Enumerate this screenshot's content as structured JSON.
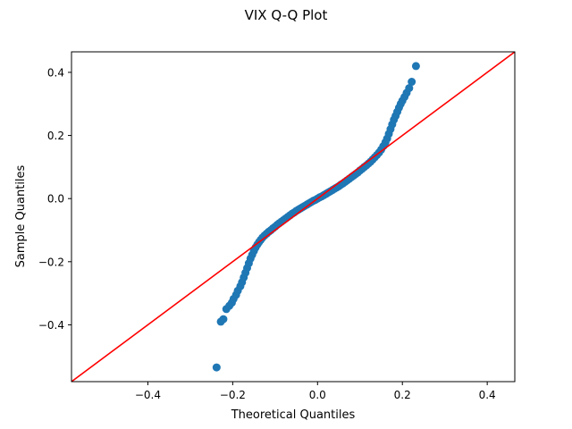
{
  "chart_data": {
    "type": "scatter",
    "title": "VIX Q-Q Plot",
    "xlabel": "Theoretical Quantiles",
    "ylabel": "Sample Quantiles",
    "xlim": [
      -0.58,
      0.465
    ],
    "ylim": [
      -0.58,
      0.465
    ],
    "grid": false,
    "x_ticks": [
      {
        "value": -0.4,
        "label": "−0.4"
      },
      {
        "value": -0.2,
        "label": "−0.2"
      },
      {
        "value": 0.0,
        "label": "0.0"
      },
      {
        "value": 0.2,
        "label": "0.2"
      },
      {
        "value": 0.4,
        "label": "0.4"
      }
    ],
    "y_ticks": [
      {
        "value": -0.4,
        "label": "−0.4"
      },
      {
        "value": -0.2,
        "label": "−0.2"
      },
      {
        "value": 0.0,
        "label": "0.0"
      },
      {
        "value": 0.2,
        "label": "0.2"
      },
      {
        "value": 0.4,
        "label": "0.4"
      }
    ],
    "reference_line": {
      "slope": 1,
      "intercept": 0,
      "color": "#ff0000"
    },
    "series": [
      {
        "color": "#1f77b4",
        "points": [
          [
            -0.238,
            -0.535
          ],
          [
            -0.228,
            -0.39
          ],
          [
            -0.222,
            -0.382
          ],
          [
            -0.215,
            -0.35
          ],
          [
            -0.208,
            -0.34
          ],
          [
            -0.202,
            -0.33
          ],
          [
            -0.198,
            -0.318
          ],
          [
            -0.192,
            -0.305
          ],
          [
            -0.188,
            -0.292
          ],
          [
            -0.182,
            -0.278
          ],
          [
            -0.178,
            -0.265
          ],
          [
            -0.174,
            -0.25
          ],
          [
            -0.17,
            -0.235
          ],
          [
            -0.166,
            -0.22
          ],
          [
            -0.162,
            -0.205
          ],
          [
            -0.158,
            -0.19
          ],
          [
            -0.154,
            -0.178
          ],
          [
            -0.15,
            -0.166
          ],
          [
            -0.146,
            -0.155
          ],
          [
            -0.142,
            -0.146
          ],
          [
            -0.138,
            -0.138
          ],
          [
            -0.134,
            -0.131
          ],
          [
            -0.13,
            -0.124
          ],
          [
            -0.125,
            -0.117
          ],
          [
            -0.12,
            -0.111
          ],
          [
            -0.115,
            -0.105
          ],
          [
            -0.11,
            -0.1
          ],
          [
            -0.105,
            -0.094
          ],
          [
            -0.1,
            -0.089
          ],
          [
            -0.095,
            -0.083
          ],
          [
            -0.09,
            -0.078
          ],
          [
            -0.085,
            -0.073
          ],
          [
            -0.08,
            -0.068
          ],
          [
            -0.075,
            -0.063
          ],
          [
            -0.07,
            -0.058
          ],
          [
            -0.065,
            -0.053
          ],
          [
            -0.06,
            -0.048
          ],
          [
            -0.055,
            -0.044
          ],
          [
            -0.05,
            -0.039
          ],
          [
            -0.045,
            -0.035
          ],
          [
            -0.04,
            -0.031
          ],
          [
            -0.035,
            -0.027
          ],
          [
            -0.03,
            -0.023
          ],
          [
            -0.025,
            -0.019
          ],
          [
            -0.02,
            -0.015
          ],
          [
            -0.015,
            -0.011
          ],
          [
            -0.01,
            -0.007
          ],
          [
            -0.005,
            -0.004
          ],
          [
            0.0,
            0.0
          ],
          [
            0.005,
            0.004
          ],
          [
            0.01,
            0.007
          ],
          [
            0.015,
            0.011
          ],
          [
            0.02,
            0.015
          ],
          [
            0.025,
            0.019
          ],
          [
            0.03,
            0.023
          ],
          [
            0.035,
            0.027
          ],
          [
            0.04,
            0.031
          ],
          [
            0.045,
            0.035
          ],
          [
            0.05,
            0.039
          ],
          [
            0.055,
            0.044
          ],
          [
            0.06,
            0.048
          ],
          [
            0.065,
            0.053
          ],
          [
            0.07,
            0.058
          ],
          [
            0.075,
            0.063
          ],
          [
            0.08,
            0.068
          ],
          [
            0.085,
            0.073
          ],
          [
            0.09,
            0.078
          ],
          [
            0.095,
            0.083
          ],
          [
            0.1,
            0.089
          ],
          [
            0.105,
            0.094
          ],
          [
            0.11,
            0.1
          ],
          [
            0.115,
            0.105
          ],
          [
            0.12,
            0.111
          ],
          [
            0.125,
            0.117
          ],
          [
            0.13,
            0.124
          ],
          [
            0.135,
            0.131
          ],
          [
            0.14,
            0.138
          ],
          [
            0.145,
            0.146
          ],
          [
            0.15,
            0.155
          ],
          [
            0.155,
            0.166
          ],
          [
            0.16,
            0.178
          ],
          [
            0.164,
            0.19
          ],
          [
            0.168,
            0.205
          ],
          [
            0.172,
            0.22
          ],
          [
            0.176,
            0.235
          ],
          [
            0.18,
            0.25
          ],
          [
            0.184,
            0.262
          ],
          [
            0.188,
            0.275
          ],
          [
            0.192,
            0.288
          ],
          [
            0.196,
            0.3
          ],
          [
            0.2,
            0.31
          ],
          [
            0.205,
            0.322
          ],
          [
            0.21,
            0.335
          ],
          [
            0.216,
            0.35
          ],
          [
            0.222,
            0.37
          ],
          [
            0.232,
            0.42
          ]
        ]
      }
    ]
  }
}
